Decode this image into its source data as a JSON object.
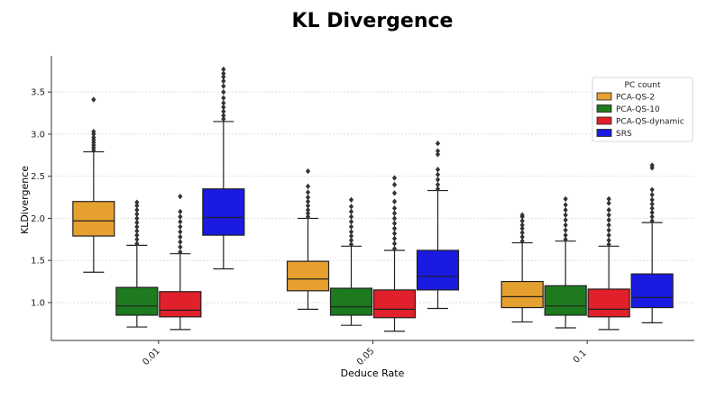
{
  "chart_data": {
    "type": "box",
    "title": "KL Divergence",
    "xlabel": "Deduce Rate",
    "ylabel": "KLDivergence",
    "ylim": [
      0.55,
      3.93
    ],
    "yticks": [
      "1.0",
      "1.5",
      "2.0",
      "2.5",
      "3.0",
      "3.5"
    ],
    "grid": true,
    "categories": [
      "0.01",
      "0.05",
      "0.1"
    ],
    "legend": {
      "title": "PC count",
      "placement": "top-right"
    },
    "series": [
      {
        "name": "PCA-QS-2",
        "color": "#E6A030",
        "boxes": [
          {
            "whislo": 1.36,
            "q1": 1.79,
            "med": 1.97,
            "q3": 2.2,
            "whishi": 2.79,
            "fliers": [
              2.81,
              2.84,
              2.87,
              2.9,
              2.93,
              2.96,
              3.0,
              3.03,
              3.41
            ]
          },
          {
            "whislo": 0.92,
            "q1": 1.14,
            "med": 1.28,
            "q3": 1.49,
            "whishi": 2.0,
            "fliers": [
              2.02,
              2.06,
              2.1,
              2.15,
              2.2,
              2.25,
              2.31,
              2.38,
              2.56
            ]
          },
          {
            "whislo": 0.77,
            "q1": 0.94,
            "med": 1.07,
            "q3": 1.25,
            "whishi": 1.71,
            "fliers": [
              1.73,
              1.78,
              1.83,
              1.88,
              1.92,
              1.97,
              2.02,
              2.04
            ]
          }
        ]
      },
      {
        "name": "PCA-QS-10",
        "color": "#1E7A1E",
        "boxes": [
          {
            "whislo": 0.71,
            "q1": 0.85,
            "med": 0.96,
            "q3": 1.18,
            "whishi": 1.68,
            "fliers": [
              1.7,
              1.75,
              1.8,
              1.85,
              1.9,
              1.95,
              2.0,
              2.05,
              2.1,
              2.15,
              2.19
            ]
          },
          {
            "whislo": 0.73,
            "q1": 0.85,
            "med": 0.95,
            "q3": 1.17,
            "whishi": 1.67,
            "fliers": [
              1.69,
              1.74,
              1.79,
              1.84,
              1.9,
              1.96,
              2.02,
              2.08,
              2.14,
              2.22
            ]
          },
          {
            "whislo": 0.7,
            "q1": 0.85,
            "med": 0.96,
            "q3": 1.2,
            "whishi": 1.73,
            "fliers": [
              1.75,
              1.8,
              1.86,
              1.92,
              1.98,
              2.04,
              2.1,
              2.16,
              2.23
            ]
          }
        ]
      },
      {
        "name": "PCA-QS-dynamic",
        "color": "#E0202A",
        "boxes": [
          {
            "whislo": 0.68,
            "q1": 0.83,
            "med": 0.91,
            "q3": 1.13,
            "whishi": 1.58,
            "fliers": [
              1.6,
              1.66,
              1.72,
              1.78,
              1.84,
              1.9,
              1.96,
              2.02,
              2.08,
              2.26
            ]
          },
          {
            "whislo": 0.66,
            "q1": 0.82,
            "med": 0.92,
            "q3": 1.15,
            "whishi": 1.62,
            "fliers": [
              1.64,
              1.7,
              1.76,
              1.82,
              1.88,
              1.94,
              2.0,
              2.06,
              2.12,
              2.2,
              2.3,
              2.4,
              2.48
            ]
          },
          {
            "whislo": 0.68,
            "q1": 0.83,
            "med": 0.92,
            "q3": 1.16,
            "whishi": 1.67,
            "fliers": [
              1.69,
              1.74,
              1.8,
              1.86,
              1.92,
              1.98,
              2.04,
              2.1,
              2.18,
              2.23
            ]
          }
        ]
      },
      {
        "name": "SRS",
        "color": "#1A1AE0",
        "boxes": [
          {
            "whislo": 1.4,
            "q1": 1.8,
            "med": 2.01,
            "q3": 2.35,
            "whishi": 3.15,
            "fliers": [
              3.18,
              3.22,
              3.27,
              3.32,
              3.37,
              3.43,
              3.5,
              3.57,
              3.63,
              3.68,
              3.72,
              3.77
            ]
          },
          {
            "whislo": 0.93,
            "q1": 1.15,
            "med": 1.31,
            "q3": 1.62,
            "whishi": 2.33,
            "fliers": [
              2.35,
              2.4,
              2.46,
              2.52,
              2.58,
              2.76,
              2.8,
              2.89
            ]
          },
          {
            "whislo": 0.76,
            "q1": 0.94,
            "med": 1.06,
            "q3": 1.34,
            "whishi": 1.95,
            "fliers": [
              1.97,
              2.02,
              2.07,
              2.12,
              2.17,
              2.22,
              2.28,
              2.34,
              2.6,
              2.63
            ]
          }
        ]
      }
    ]
  }
}
